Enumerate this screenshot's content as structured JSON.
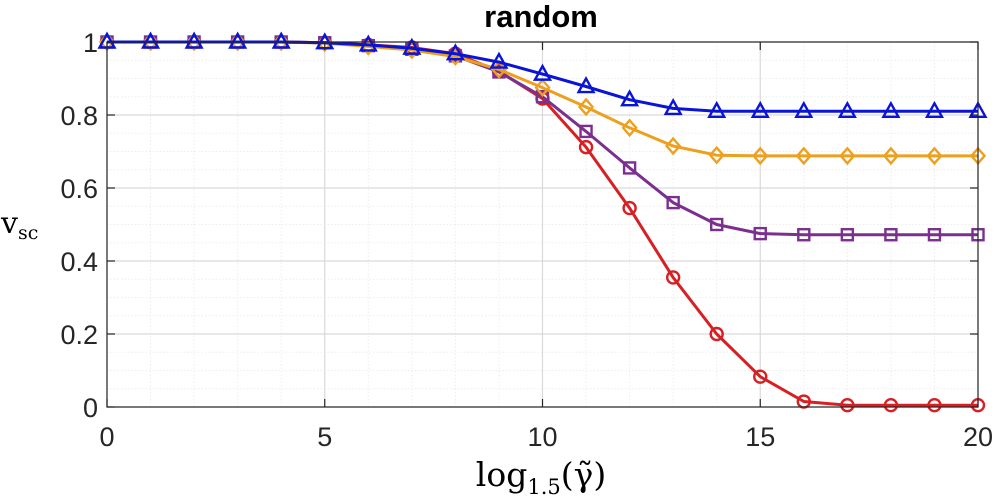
{
  "chart_data": {
    "type": "line",
    "title": "random",
    "xlabel": {
      "main": "log",
      "sub": "1.5",
      "arg": "(γ̃)"
    },
    "ylabel": {
      "main": "v",
      "sub": "sc"
    },
    "xlim": [
      0,
      20
    ],
    "ylim": [
      0,
      1
    ],
    "grid": true,
    "minor_grid": true,
    "x": [
      0,
      1,
      2,
      3,
      4,
      5,
      6,
      7,
      8,
      9,
      10,
      11,
      12,
      13,
      14,
      15,
      16,
      17,
      18,
      19,
      20
    ],
    "x_ticks": [
      0,
      5,
      10,
      15,
      20
    ],
    "x_tick_labels": [
      "0",
      "5",
      "10",
      "15",
      "20"
    ],
    "y_ticks": [
      0,
      0.2,
      0.4,
      0.6,
      0.8,
      1
    ],
    "y_tick_labels": [
      "0",
      "0.2",
      "0.4",
      "0.6",
      "0.8",
      "1"
    ],
    "series": [
      {
        "name": "red-circle",
        "marker": "circle",
        "color": "#d62024",
        "values": [
          1,
          1,
          1,
          1,
          1,
          0.998,
          0.992,
          0.985,
          0.968,
          0.92,
          0.845,
          0.712,
          0.545,
          0.355,
          0.2,
          0.083,
          0.015,
          0.005,
          0.005,
          0.005,
          0.005
        ]
      },
      {
        "name": "purple-square",
        "marker": "square",
        "color": "#7b2f8e",
        "values": [
          1,
          1,
          1,
          1,
          1,
          0.998,
          0.99,
          0.98,
          0.962,
          0.918,
          0.85,
          0.755,
          0.655,
          0.56,
          0.5,
          0.475,
          0.472,
          0.472,
          0.472,
          0.472,
          0.472
        ]
      },
      {
        "name": "orange-diamond",
        "marker": "diamond",
        "color": "#eda01e",
        "values": [
          1,
          1,
          1,
          1,
          1,
          0.997,
          0.988,
          0.978,
          0.96,
          0.925,
          0.875,
          0.822,
          0.765,
          0.715,
          0.69,
          0.688,
          0.688,
          0.688,
          0.688,
          0.688,
          0.688
        ]
      },
      {
        "name": "blue-triangle",
        "marker": "triangle",
        "color": "#0a14d6",
        "values": [
          1,
          1,
          1,
          1,
          1,
          0.998,
          0.992,
          0.983,
          0.968,
          0.945,
          0.912,
          0.878,
          0.842,
          0.818,
          0.81,
          0.81,
          0.81,
          0.81,
          0.81,
          0.81,
          0.81
        ]
      }
    ]
  }
}
